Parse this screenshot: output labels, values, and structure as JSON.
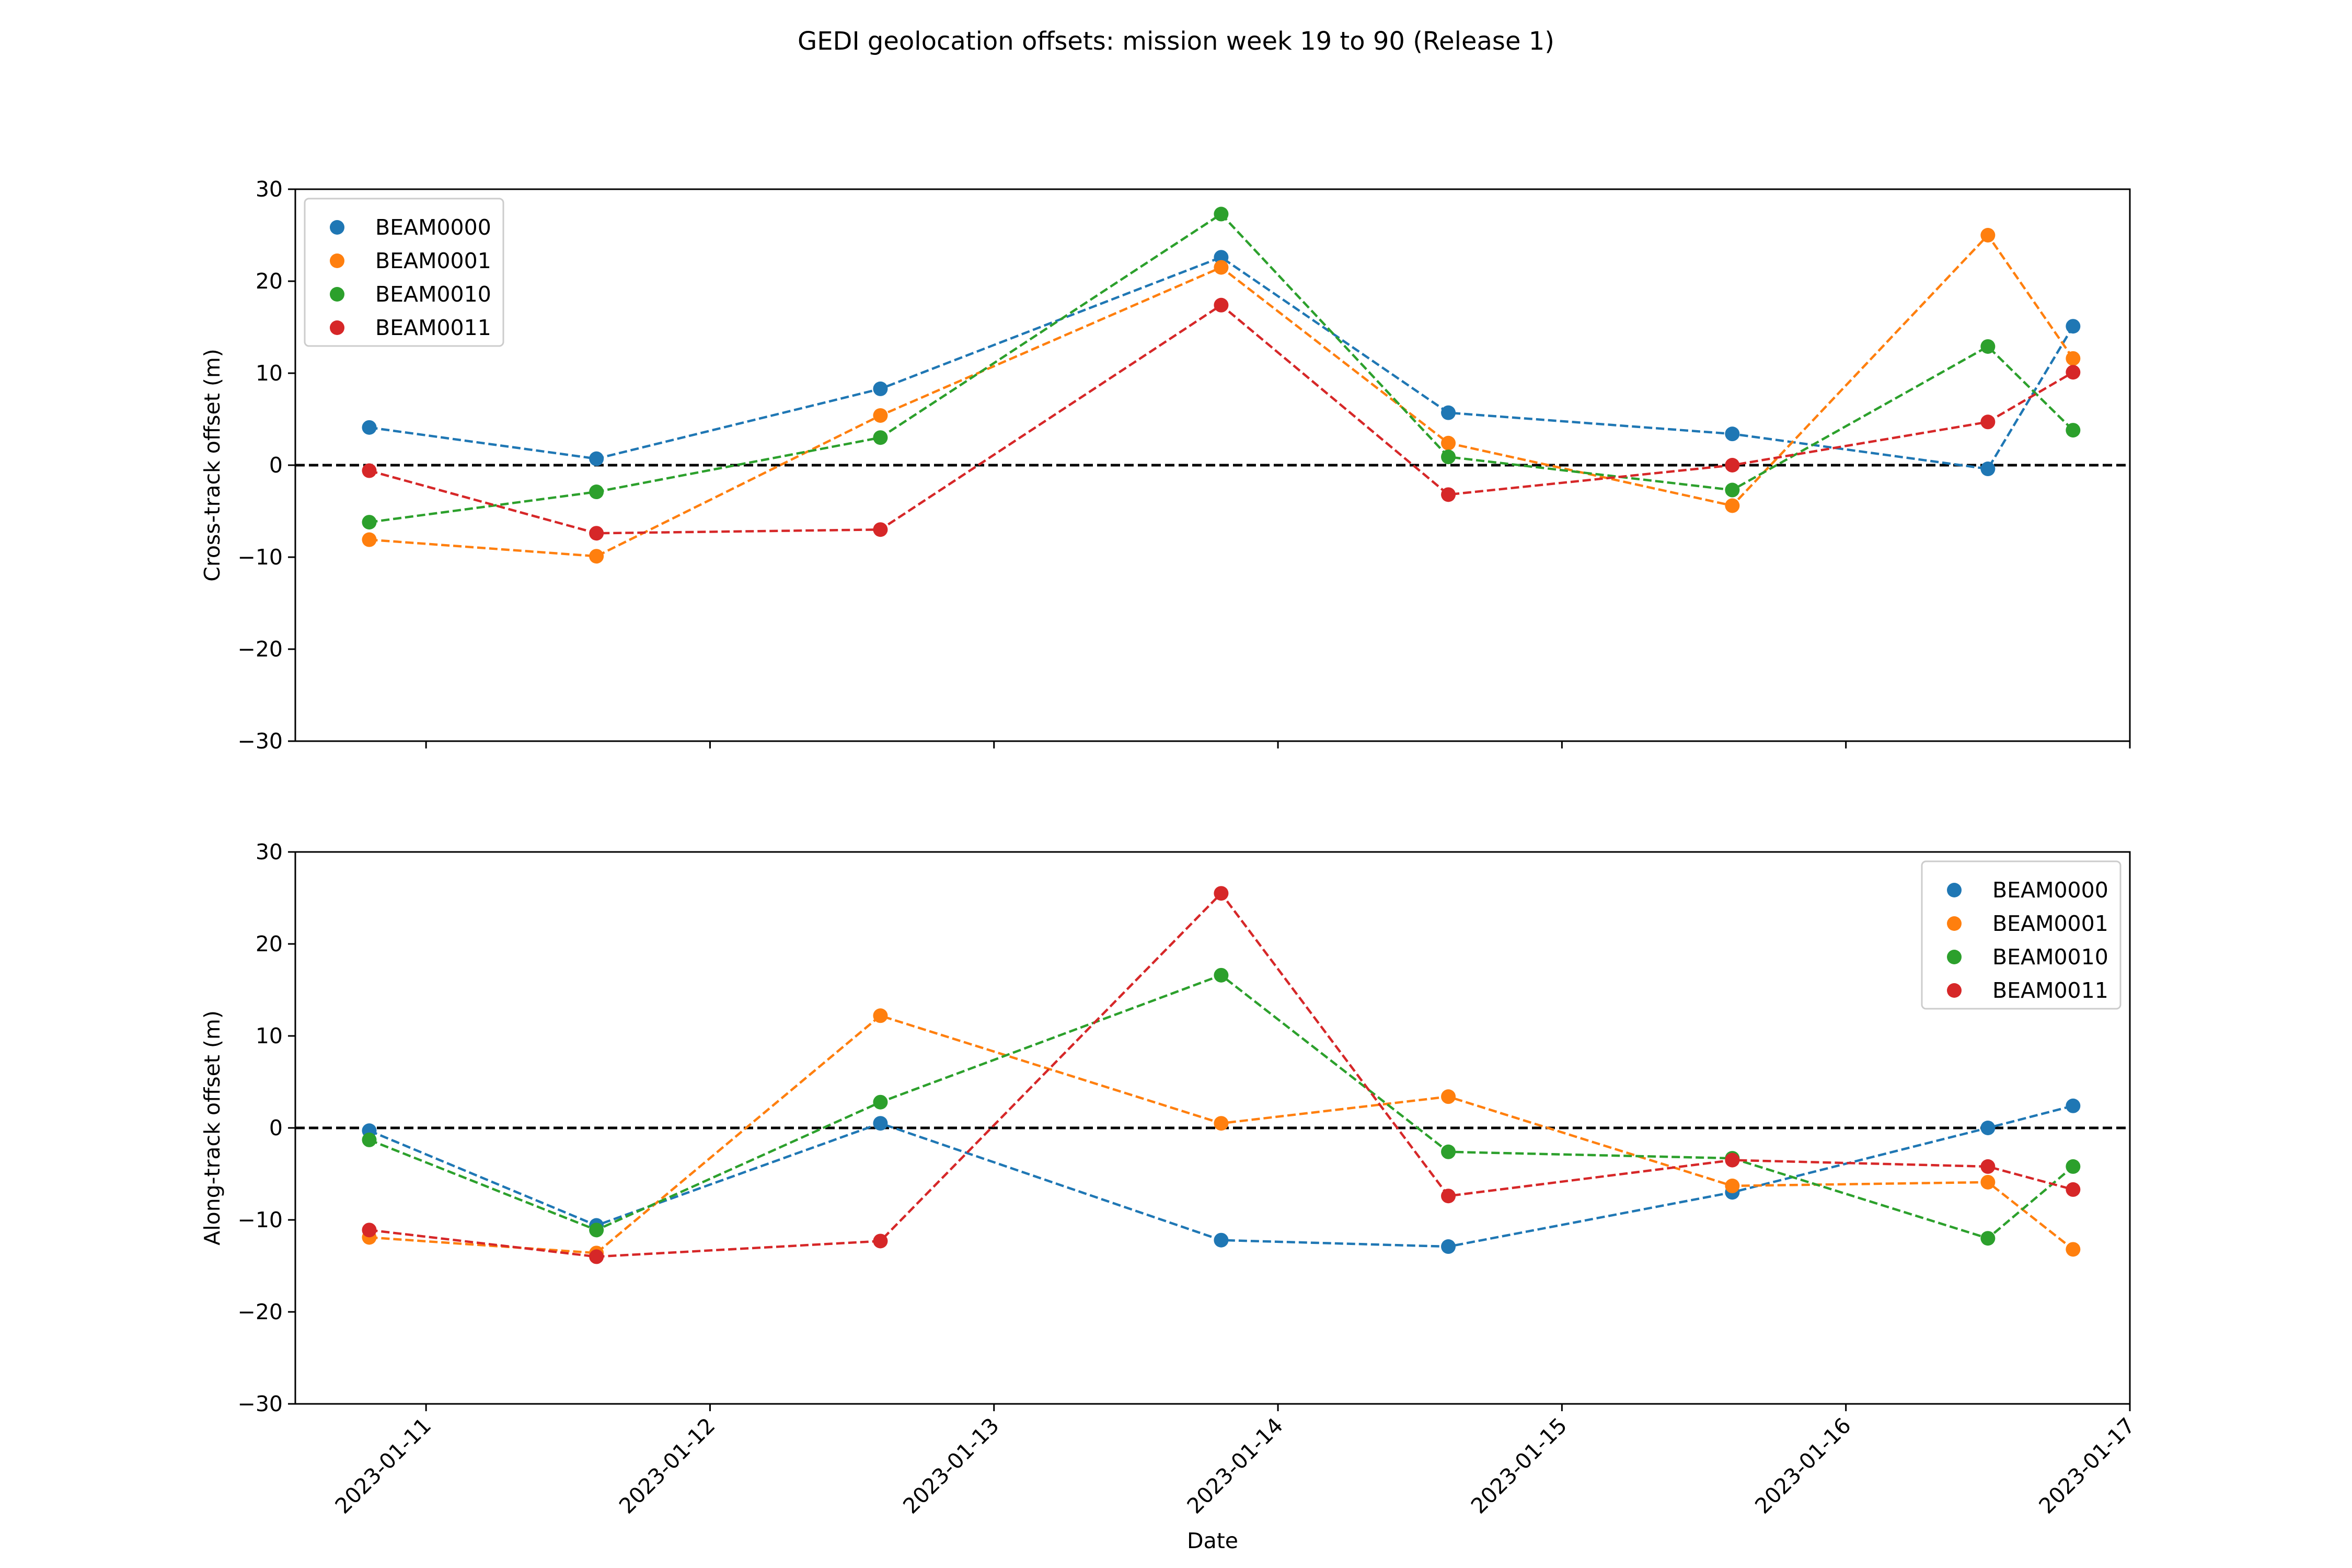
{
  "figure": {
    "title": "GEDI geolocation offsets: mission week 19 to 90 (Release 1)"
  },
  "colors": {
    "BEAM0000": "#1f77b4",
    "BEAM0001": "#ff7f0e",
    "BEAM0010": "#2ca02c",
    "BEAM0011": "#d62728",
    "zero_line": "#000000"
  },
  "chart_data": [
    {
      "type": "line",
      "title": "",
      "xlabel": "",
      "ylabel": "Cross-track offset (m)",
      "ylim": [
        -30,
        30
      ],
      "yticks": [
        -30,
        -20,
        -10,
        0,
        10,
        20,
        30
      ],
      "xlim": [
        "2023-01-10T12:57",
        "2023-01-17T00:00"
      ],
      "xticks": [
        "2023-01-11",
        "2023-01-12",
        "2023-01-13",
        "2023-01-14",
        "2023-01-15",
        "2023-01-16",
        "2023-01-17"
      ],
      "show_xtick_labels": false,
      "grid": false,
      "legend": "upper-left",
      "zero_line": {
        "y": 0,
        "style": "dashed"
      },
      "x": [
        "2023-01-10T19:12",
        "2023-01-11T14:24",
        "2023-01-12T14:24",
        "2023-01-13T19:12",
        "2023-01-14T14:24",
        "2023-01-15T14:24",
        "2023-01-16T12:00",
        "2023-01-16T19:12"
      ],
      "series": [
        {
          "name": "BEAM0000",
          "values": [
            4.1,
            0.7,
            8.3,
            22.6,
            5.7,
            3.4,
            -0.4,
            15.1
          ]
        },
        {
          "name": "BEAM0001",
          "values": [
            -8.1,
            -9.9,
            5.4,
            21.5,
            2.4,
            -4.4,
            25.0,
            11.6
          ]
        },
        {
          "name": "BEAM0010",
          "values": [
            -6.2,
            -2.9,
            3.0,
            27.3,
            0.9,
            -2.7,
            12.9,
            3.8
          ]
        },
        {
          "name": "BEAM0011",
          "values": [
            -0.6,
            -7.4,
            -7.0,
            17.4,
            -3.2,
            0.0,
            4.7,
            10.1
          ]
        }
      ]
    },
    {
      "type": "line",
      "title": "",
      "xlabel": "Date",
      "ylabel": "Along-track offset (m)",
      "ylim": [
        -30,
        30
      ],
      "yticks": [
        -30,
        -20,
        -10,
        0,
        10,
        20,
        30
      ],
      "xlim": [
        "2023-01-10T12:57",
        "2023-01-17T00:00"
      ],
      "xticks": [
        "2023-01-11",
        "2023-01-12",
        "2023-01-13",
        "2023-01-14",
        "2023-01-15",
        "2023-01-16",
        "2023-01-17"
      ],
      "show_xtick_labels": true,
      "grid": false,
      "legend": "upper-right",
      "zero_line": {
        "y": 0,
        "style": "dashed"
      },
      "x": [
        "2023-01-10T19:12",
        "2023-01-11T14:24",
        "2023-01-12T14:24",
        "2023-01-13T19:12",
        "2023-01-14T14:24",
        "2023-01-15T14:24",
        "2023-01-16T12:00",
        "2023-01-16T19:12"
      ],
      "series": [
        {
          "name": "BEAM0000",
          "values": [
            -0.3,
            -10.6,
            0.5,
            -12.2,
            -12.9,
            -7.0,
            0.0,
            2.4
          ]
        },
        {
          "name": "BEAM0001",
          "values": [
            -11.9,
            -13.6,
            12.2,
            0.5,
            3.4,
            -6.3,
            -5.9,
            -13.2
          ]
        },
        {
          "name": "BEAM0010",
          "values": [
            -1.3,
            -11.1,
            2.8,
            16.6,
            -2.6,
            -3.3,
            -12.0,
            -4.2
          ]
        },
        {
          "name": "BEAM0011",
          "values": [
            -11.1,
            -14.0,
            -12.3,
            25.5,
            -7.4,
            -3.5,
            -4.2,
            -6.7
          ]
        }
      ]
    }
  ]
}
